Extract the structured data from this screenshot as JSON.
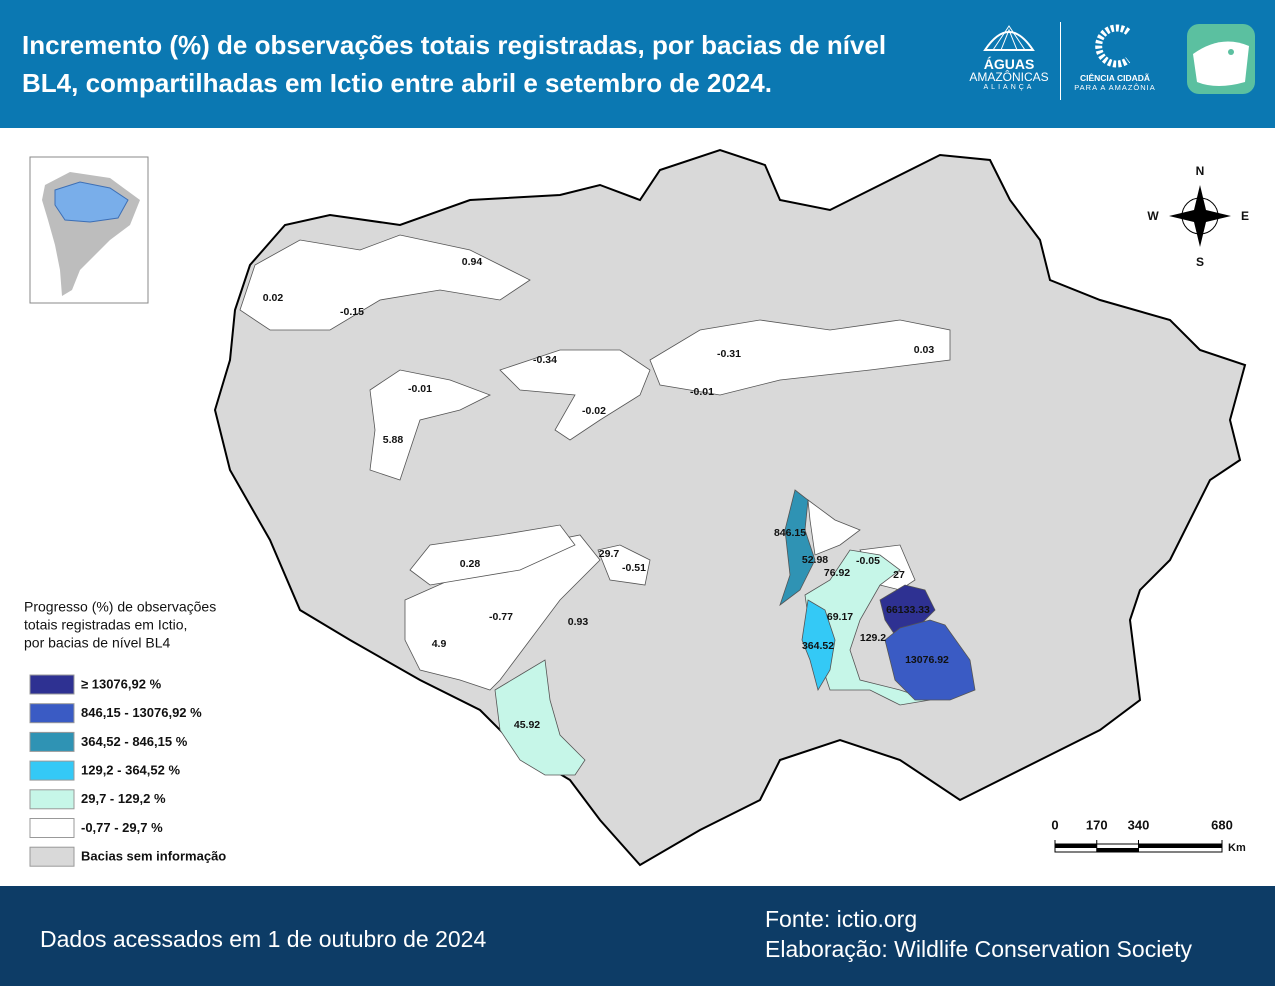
{
  "header": {
    "title": "Incremento (%) de observações totais registradas, por bacias de nível BL4, compartilhadas em Ictio entre abril e setembro de 2024.",
    "logos": {
      "aguas": "ÁGUAS",
      "amazonicas": "AMAZÔNICAS",
      "alianca": "ALIANÇA",
      "ciencia": "CIÊNCIA CIDADÃ",
      "para": "PARA A AMAZÔNIA"
    }
  },
  "compass": {
    "n": "N",
    "s": "S",
    "w": "W",
    "e": "E"
  },
  "map_labels": [
    "0.94",
    "0.02",
    "-0.15",
    "-0.34",
    "-0.31",
    "0.03",
    "-0.01",
    "-0.02",
    "-0.01",
    "5.88",
    "846.15",
    "52.98",
    "-0.05",
    "76.92",
    "29.7",
    "-0.51",
    "27",
    "0.28",
    "66133.33",
    "69.17",
    "-0.77",
    "0.93",
    "129.2",
    "364.52",
    "4.9",
    "13076.92",
    "45.92"
  ],
  "legend": {
    "title": [
      "Progresso (%) de observações",
      "totais registradas em Ictio,",
      "por bacias de nível BL4"
    ],
    "items": [
      {
        "label": "≥ 13076,92 %",
        "color": "#2e3192"
      },
      {
        "label": "846,15 - 13076,92 %",
        "color": "#3a5bc4"
      },
      {
        "label": "364,52 - 846,15 %",
        "color": "#2f93b4"
      },
      {
        "label": "129,2 - 364,52 %",
        "color": "#34c9f6"
      },
      {
        "label": "29,7 - 129,2 %",
        "color": "#c6f6e8"
      },
      {
        "label": "-0,77 - 29,7 %",
        "color": "#ffffff"
      },
      {
        "label": "Bacias sem informação",
        "color": "#d9d9d9"
      }
    ]
  },
  "scale": {
    "ticks": [
      0,
      170,
      340,
      680
    ],
    "unit": "Km"
  },
  "footer": {
    "date": "Dados acessados em 1 de outubro de 2024",
    "source": "Fonte: ictio.org",
    "credit": "Elaboração: Wildlife Conservation Society"
  }
}
